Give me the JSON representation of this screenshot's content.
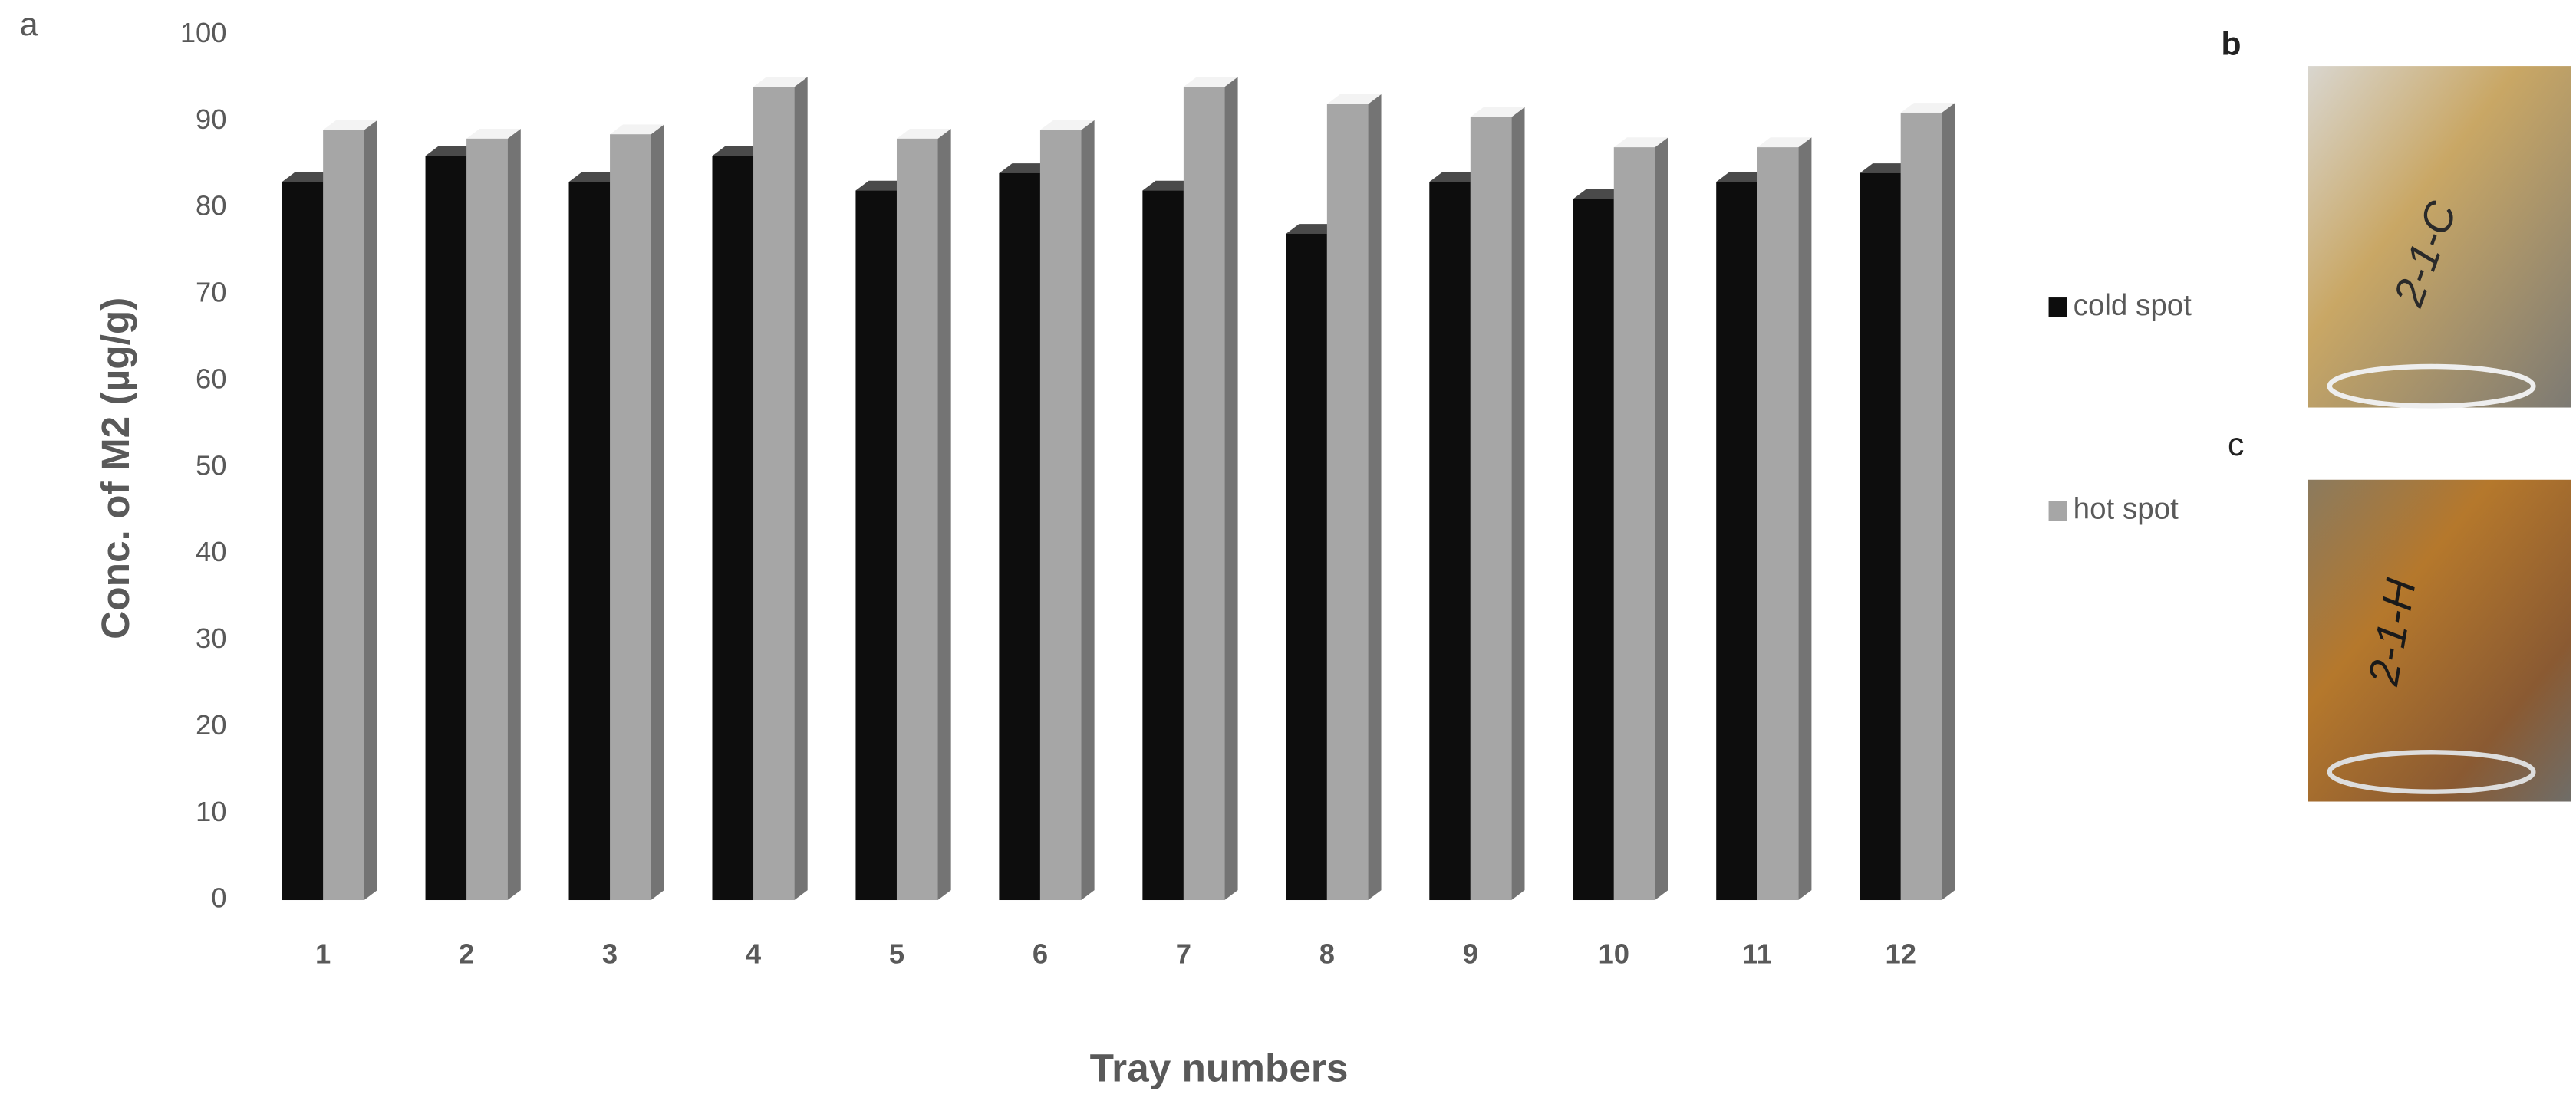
{
  "panel_labels": {
    "a": "a",
    "b": "b",
    "c": "c"
  },
  "photos": {
    "b": "2-1-C",
    "c": "2-1-H"
  },
  "chart_data": {
    "type": "bar",
    "y_label": "Conc. of M2 (µg/g)",
    "x_label": "Tray numbers",
    "categories": [
      "1",
      "2",
      "3",
      "4",
      "5",
      "6",
      "7",
      "8",
      "9",
      "10",
      "11",
      "12"
    ],
    "series": [
      {
        "name": "cold spot",
        "color": "#0d0d0d",
        "values": [
          83,
          86,
          83,
          86,
          82,
          84,
          82,
          77,
          83,
          81,
          83,
          84
        ]
      },
      {
        "name": "hot spot",
        "color": "#a6a6a6",
        "values": [
          89,
          88,
          88.5,
          94,
          88,
          89,
          94,
          92,
          90.5,
          87,
          87,
          91
        ]
      }
    ],
    "ylim": [
      0,
      100
    ],
    "yticks": [
      0,
      10,
      20,
      30,
      40,
      50,
      60,
      70,
      80,
      90,
      100
    ],
    "grid": false,
    "legend": "right"
  }
}
